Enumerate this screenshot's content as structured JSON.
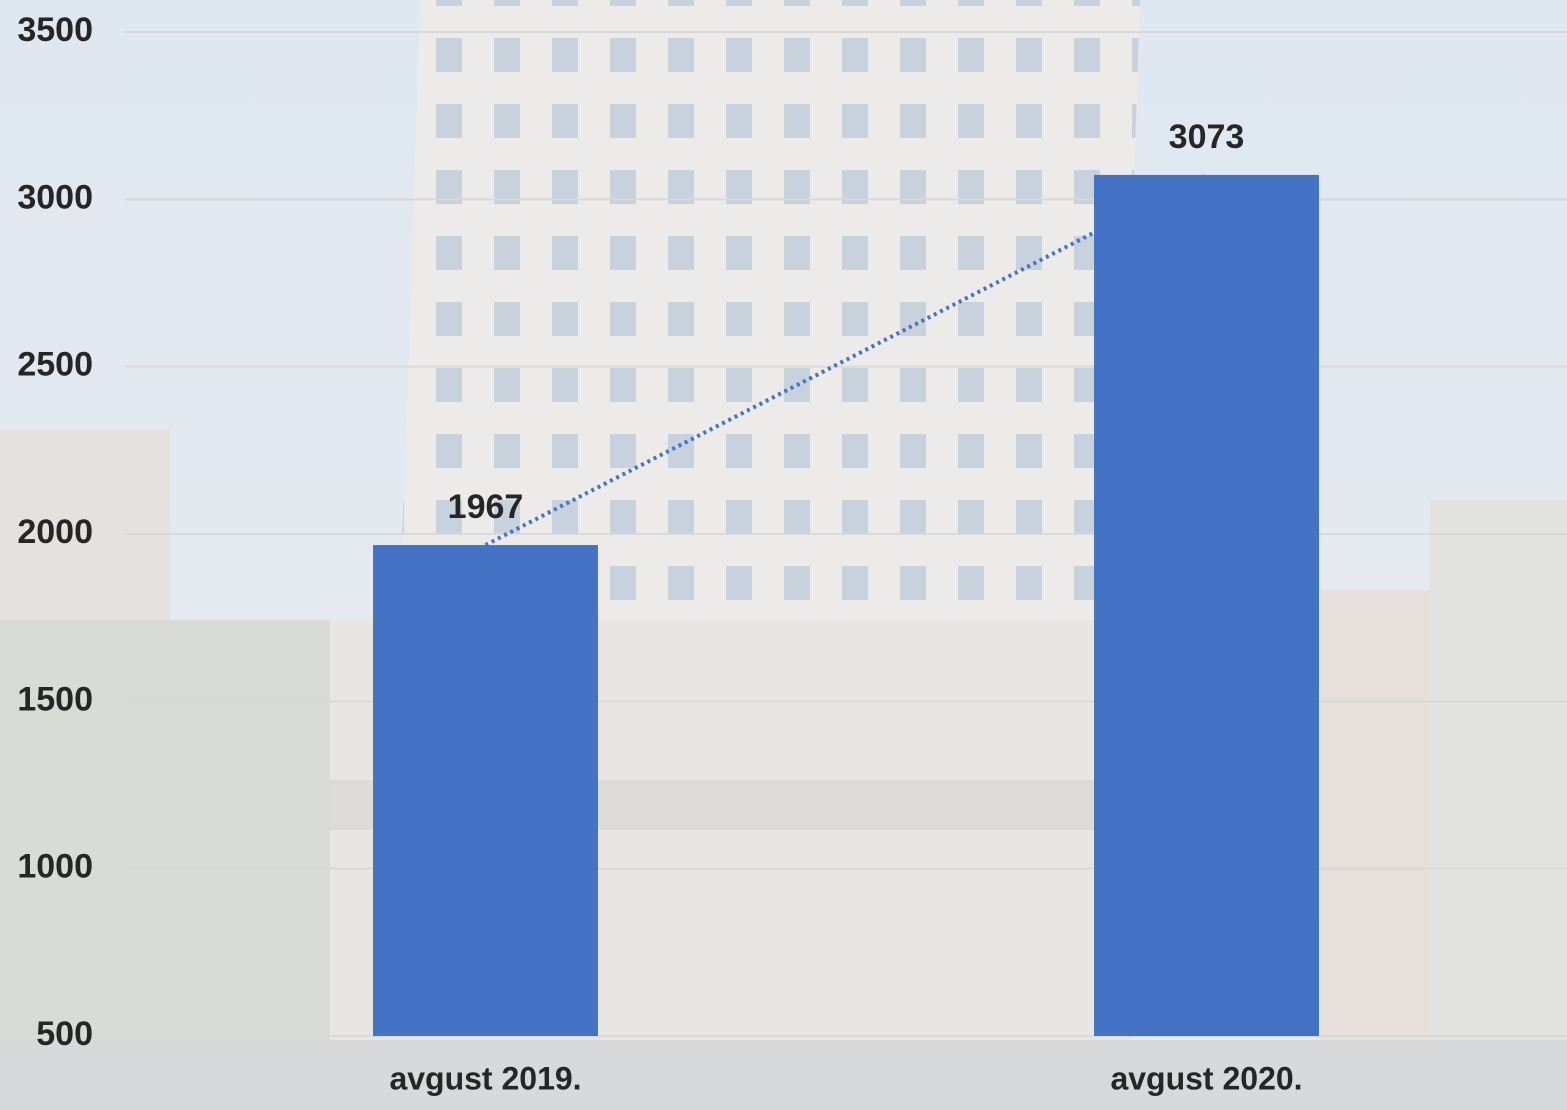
{
  "chart_data": {
    "type": "bar",
    "categories": [
      "avgust 2019.",
      "avgust 2020."
    ],
    "values": [
      1967,
      3073
    ],
    "color": "#4472c4",
    "ylim": [
      500,
      3500
    ],
    "yticks": [
      500,
      1000,
      1500,
      2000,
      2500,
      3000,
      3500
    ],
    "grid": true,
    "trendline": true
  }
}
